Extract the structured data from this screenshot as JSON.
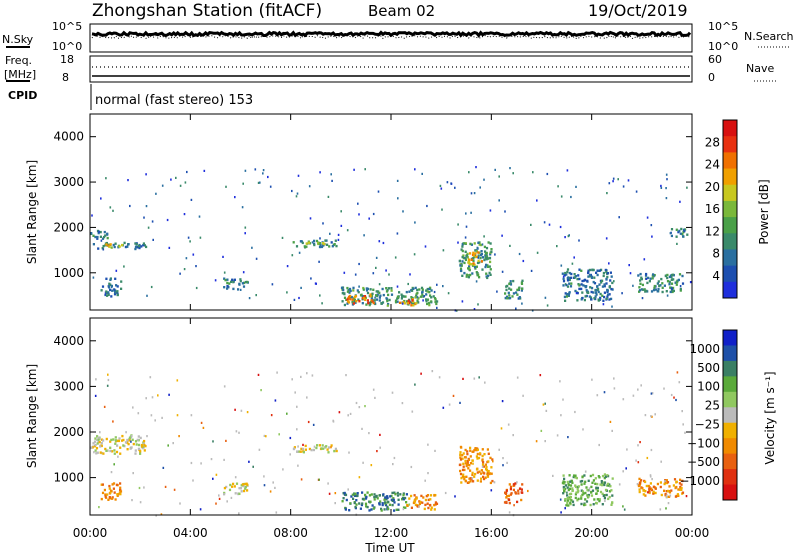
{
  "header": {
    "station": "Zhongshan Station (fitACF)",
    "beam": "Beam 02",
    "date": "19/Oct/2019"
  },
  "noise_panel": {
    "left_label": "N.Sky",
    "right_label": "N.Search",
    "left_ticks": [
      "10^5",
      "10^0"
    ],
    "right_ticks": [
      "10^5",
      "10^0"
    ]
  },
  "freq_panel": {
    "left_label_top": "Freq.",
    "left_label_unit": "[MHz]",
    "left_ticks": [
      "18",
      "8"
    ],
    "right_label": "Nave",
    "right_ticks": [
      "60",
      "0"
    ]
  },
  "cpid": {
    "label": "CPID",
    "text": "normal (fast stereo) 153"
  },
  "colors": {
    "power_scale": [
      "#1f2fdc",
      "#1d4fb0",
      "#2a6fa0",
      "#3a8a6a",
      "#4aa048",
      "#7ab83a",
      "#c8c820",
      "#f0a000",
      "#f07000",
      "#e83010",
      "#d81010"
    ],
    "velocity_scale": [
      "#1020c8",
      "#1e50a8",
      "#3a7f64",
      "#5aaa3a",
      "#90c860",
      "#bbbbbb",
      "#f0b000",
      "#f08a00",
      "#e86010",
      "#e03010",
      "#d81010"
    ]
  },
  "chart_data": [
    {
      "type": "heatmap",
      "name": "power",
      "ylabel": "Slant Range [km]",
      "yticks": [
        "1000",
        "2000",
        "3000",
        "4000"
      ],
      "ylim": [
        180,
        4500
      ],
      "colorbar_label": "Power [dB]",
      "colorbar_ticks": [
        "4",
        "8",
        "12",
        "16",
        "20",
        "24",
        "28"
      ],
      "colorbar_range": [
        0,
        32
      ],
      "regions": [
        {
          "t": [
            0.1,
            2.2
          ],
          "r": [
            1550,
            1700
          ],
          "v": 8
        },
        {
          "t": [
            0.0,
            0.8
          ],
          "r": [
            1750,
            1950
          ],
          "v": 7
        },
        {
          "t": [
            0.5,
            1.4
          ],
          "r": [
            1580,
            1660
          ],
          "v": 20
        },
        {
          "t": [
            8.0,
            9.8
          ],
          "r": [
            1580,
            1740
          ],
          "v": 9
        },
        {
          "t": [
            8.5,
            9.3
          ],
          "r": [
            1650,
            1700
          ],
          "v": 18
        },
        {
          "t": [
            10.0,
            13.8
          ],
          "r": [
            300,
            700
          ],
          "v": 10
        },
        {
          "t": [
            10.2,
            11.3
          ],
          "r": [
            350,
            550
          ],
          "v": 26
        },
        {
          "t": [
            12.2,
            13.0
          ],
          "r": [
            300,
            450
          ],
          "v": 23
        },
        {
          "t": [
            14.7,
            16.0
          ],
          "r": [
            900,
            1700
          ],
          "v": 11
        },
        {
          "t": [
            15.0,
            15.6
          ],
          "r": [
            1200,
            1500
          ],
          "v": 22
        },
        {
          "t": [
            0.4,
            1.2
          ],
          "r": [
            500,
            900
          ],
          "v": 6
        },
        {
          "t": [
            5.3,
            6.3
          ],
          "r": [
            650,
            900
          ],
          "v": 8
        },
        {
          "t": [
            18.8,
            20.8
          ],
          "r": [
            400,
            1100
          ],
          "v": 7
        },
        {
          "t": [
            21.8,
            23.6
          ],
          "r": [
            600,
            1000
          ],
          "v": 9
        },
        {
          "t": [
            23.1,
            23.8
          ],
          "r": [
            1800,
            2000
          ],
          "v": 7
        },
        {
          "t": [
            16.5,
            17.2
          ],
          "r": [
            450,
            900
          ],
          "v": 9
        }
      ]
    },
    {
      "type": "heatmap",
      "name": "velocity",
      "ylabel": "Slant Range [km]",
      "yticks": [
        "1000",
        "2000",
        "3000",
        "4000"
      ],
      "ylim": [
        180,
        4500
      ],
      "colorbar_label": "Velocity [m s⁻¹]",
      "colorbar_ticks": [
        "1000",
        "500",
        "100",
        "25",
        "−25",
        "−100",
        "−500",
        "−1000"
      ],
      "regions": [
        {
          "t": [
            0.0,
            2.2
          ],
          "r": [
            1550,
            1950
          ],
          "v": 5
        },
        {
          "t": [
            8.0,
            9.8
          ],
          "r": [
            1580,
            1740
          ],
          "v": 5
        },
        {
          "t": [
            10.0,
            12.6
          ],
          "r": [
            300,
            700
          ],
          "v": 2
        },
        {
          "t": [
            12.6,
            13.8
          ],
          "r": [
            300,
            650
          ],
          "v": 7
        },
        {
          "t": [
            14.7,
            16.0
          ],
          "r": [
            900,
            1700
          ],
          "v": 7
        },
        {
          "t": [
            0.4,
            1.2
          ],
          "r": [
            500,
            900
          ],
          "v": 7
        },
        {
          "t": [
            5.3,
            6.3
          ],
          "r": [
            650,
            900
          ],
          "v": 5
        },
        {
          "t": [
            18.8,
            20.8
          ],
          "r": [
            400,
            1100
          ],
          "v": 3
        },
        {
          "t": [
            21.8,
            23.6
          ],
          "r": [
            600,
            1000
          ],
          "v": 7
        },
        {
          "t": [
            16.5,
            17.2
          ],
          "r": [
            450,
            900
          ],
          "v": 8
        }
      ]
    }
  ],
  "time_axis": {
    "label": "Time UT",
    "ticks": [
      "00:00",
      "04:00",
      "08:00",
      "12:00",
      "16:00",
      "20:00",
      "00:00"
    ]
  }
}
